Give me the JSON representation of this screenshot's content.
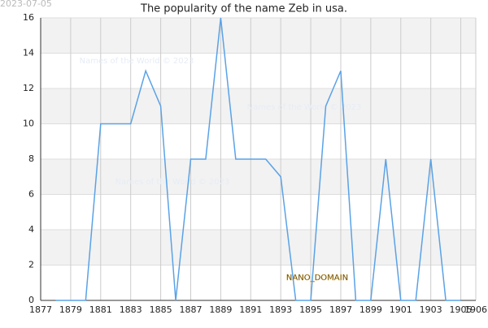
{
  "chart_data": {
    "type": "line",
    "title": "The popularity of the name Zeb in usa.",
    "date_stamp": "2023-07-05",
    "watermarks": [
      "Names of the World © 2023",
      "Names of the World © 2023",
      "Names of the World © 2023"
    ],
    "badge": "NANO_DOMAIN",
    "x": [
      1878,
      1879,
      1880,
      1881,
      1882,
      1883,
      1884,
      1885,
      1886,
      1887,
      1888,
      1889,
      1890,
      1891,
      1892,
      1893,
      1894,
      1895,
      1896,
      1897,
      1898,
      1899,
      1900,
      1901,
      1902,
      1903,
      1904,
      1905
    ],
    "series": [
      {
        "color": "#5aa2e6",
        "values": [
          0,
          0,
          0,
          10,
          10,
          10,
          13,
          11,
          0,
          8,
          8,
          16,
          8,
          8,
          8,
          7,
          0,
          0,
          11,
          13,
          0,
          0,
          8,
          0,
          0,
          8,
          0,
          0
        ]
      }
    ],
    "xlim": [
      1877,
      1906
    ],
    "xticks": [
      1877,
      1879,
      1881,
      1883,
      1885,
      1887,
      1889,
      1891,
      1893,
      1895,
      1897,
      1899,
      1901,
      1903,
      1905,
      1906
    ],
    "ylim": [
      0,
      16
    ],
    "yticks": [
      0,
      2,
      4,
      6,
      8,
      10,
      12,
      14,
      16
    ],
    "grid": true
  }
}
